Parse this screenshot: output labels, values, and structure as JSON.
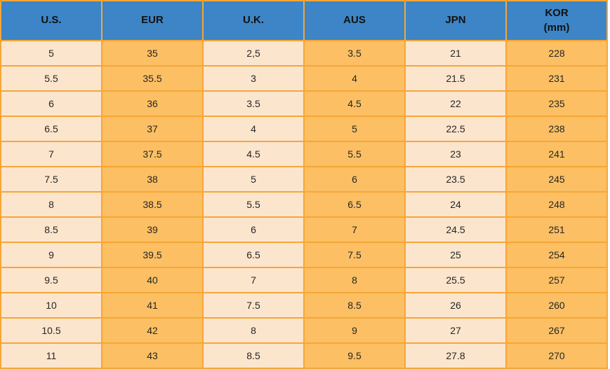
{
  "colors": {
    "header_bg": "#3D85C6",
    "header_text": "#111111",
    "odd_col_bg": "#FCE5CD",
    "even_col_bg": "#FCBF63",
    "border": "#F6A637",
    "cell_text": "#262626"
  },
  "chart_data": {
    "type": "table",
    "columns": [
      {
        "label": "U.S.",
        "sublabel": ""
      },
      {
        "label": "EUR",
        "sublabel": ""
      },
      {
        "label": "U.K.",
        "sublabel": ""
      },
      {
        "label": "AUS",
        "sublabel": ""
      },
      {
        "label": "JPN",
        "sublabel": ""
      },
      {
        "label": "KOR",
        "sublabel": "(mm)"
      }
    ],
    "rows": [
      [
        "5",
        "35",
        "2,5",
        "3.5",
        "21",
        "228"
      ],
      [
        "5.5",
        "35.5",
        "3",
        "4",
        "21.5",
        "231"
      ],
      [
        "6",
        "36",
        "3.5",
        "4.5",
        "22",
        "235"
      ],
      [
        "6.5",
        "37",
        "4",
        "5",
        "22.5",
        "238"
      ],
      [
        "7",
        "37.5",
        "4.5",
        "5.5",
        "23",
        "241"
      ],
      [
        "7.5",
        "38",
        "5",
        "6",
        "23.5",
        "245"
      ],
      [
        "8",
        "38.5",
        "5.5",
        "6.5",
        "24",
        "248"
      ],
      [
        "8.5",
        "39",
        "6",
        "7",
        "24.5",
        "251"
      ],
      [
        "9",
        "39.5",
        "6.5",
        "7.5",
        "25",
        "254"
      ],
      [
        "9.5",
        "40",
        "7",
        "8",
        "25.5",
        "257"
      ],
      [
        "10",
        "41",
        "7.5",
        "8.5",
        "26",
        "260"
      ],
      [
        "10.5",
        "42",
        "8",
        "9",
        "27",
        "267"
      ],
      [
        "11",
        "43",
        "8.5",
        "9.5",
        "27.8",
        "270"
      ]
    ]
  }
}
